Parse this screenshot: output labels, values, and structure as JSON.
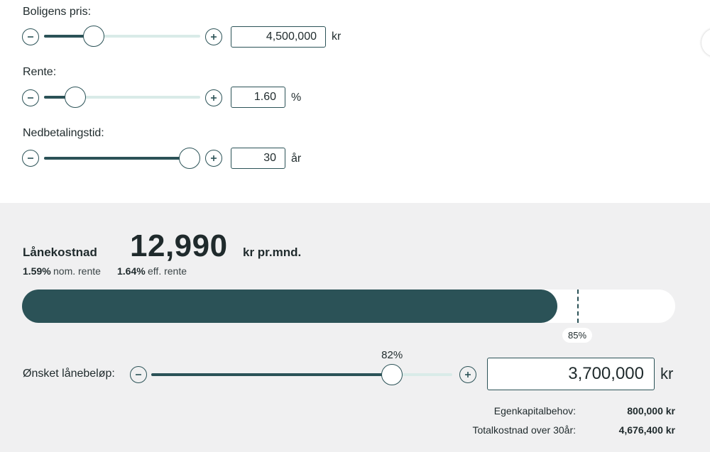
{
  "inputs": {
    "price": {
      "label": "Boligens pris:",
      "value": "4,500,000",
      "unit": "kr",
      "slider_level": 0.32
    },
    "rate": {
      "label": "Rente:",
      "value": "1.60",
      "unit": "%",
      "slider_level": 0.2
    },
    "term": {
      "label": "Nedbetalingstid:",
      "value": "30",
      "unit": "år",
      "slider_level": 0.93
    }
  },
  "result": {
    "title": "Lånekostnad",
    "amount": "12,990",
    "unit": "kr pr.mnd.",
    "nominal_rate": "1.59%",
    "nominal_label": "nom. rente",
    "effective_rate": "1.64%",
    "effective_label": "eff. rente"
  },
  "loan_bar": {
    "fill_fraction": 0.82,
    "limit_fraction": 0.85,
    "limit_label": "85%"
  },
  "loan": {
    "label": "Ønsket lånebeløp:",
    "percent_label": "82%",
    "slider_level": 0.8,
    "value": "3,700,000",
    "unit": "kr"
  },
  "summary": {
    "equity_label": "Egenkapitalbehov:",
    "equity_value": "800,000 kr",
    "total_label": "Totalkostnad over 30år:",
    "total_value": "4,676,400 kr"
  },
  "colors": {
    "accent": "#2b5257",
    "track": "#d9ebe8",
    "panel": "#f0f0f1"
  }
}
